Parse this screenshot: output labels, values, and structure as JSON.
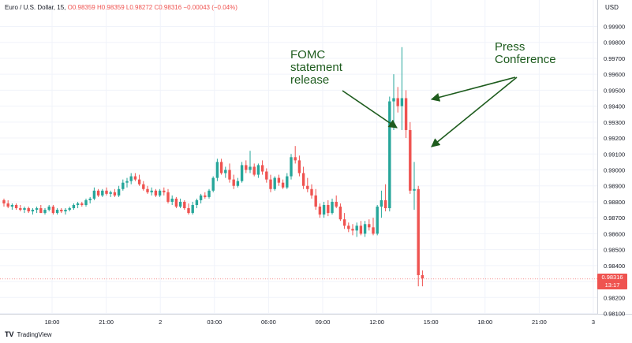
{
  "header": {
    "symbol": "Euro / U.S. Dollar, 15,",
    "ohlc": "O0.98359 H0.98359 L0.98272 C0.98316 −0.00043 (−0.04%)"
  },
  "currency": "USD",
  "brand": {
    "logo": "TV",
    "name": "TradingView"
  },
  "last_price": {
    "price": "0.98316",
    "countdown": "13:17",
    "color": "#ef5350"
  },
  "annotations": {
    "fomc": [
      "FOMC",
      "statement",
      "release"
    ],
    "press": [
      "Press",
      "Conference"
    ],
    "color": "#1e5c1e"
  },
  "colors": {
    "up": "#26a69a",
    "down": "#ef5350",
    "grid": "#f0f3fa"
  },
  "chart_data": {
    "type": "candlestick",
    "interval": "15",
    "x_ticks": [
      "18:00",
      "21:00",
      "2",
      "03:00",
      "06:00",
      "09:00",
      "12:00",
      "15:00",
      "18:00",
      "21:00",
      "3"
    ],
    "y_ticks": [
      "0.99900",
      "0.99800",
      "0.99700",
      "0.99600",
      "0.99500",
      "0.99400",
      "0.99300",
      "0.99200",
      "0.99100",
      "0.99000",
      "0.98900",
      "0.98800",
      "0.98700",
      "0.98600",
      "0.98500",
      "0.98400",
      "0.98300",
      "0.98200",
      "0.98100"
    ],
    "ylim": [
      0.981,
      0.999
    ],
    "grid": true,
    "candles": [
      [
        0.9881,
        0.9882,
        0.9877,
        0.9879
      ],
      [
        0.9879,
        0.9881,
        0.9876,
        0.9877
      ],
      [
        0.9877,
        0.9879,
        0.9875,
        0.9878
      ],
      [
        0.9878,
        0.9879,
        0.9875,
        0.9876
      ],
      [
        0.9876,
        0.9878,
        0.9874,
        0.9875
      ],
      [
        0.9875,
        0.9877,
        0.9873,
        0.9876
      ],
      [
        0.9876,
        0.9877,
        0.9873,
        0.9874
      ],
      [
        0.9874,
        0.9876,
        0.9872,
        0.9875
      ],
      [
        0.9875,
        0.9877,
        0.9873,
        0.9876
      ],
      [
        0.9876,
        0.9878,
        0.9873,
        0.9873
      ],
      [
        0.9873,
        0.9876,
        0.9872,
        0.9875
      ],
      [
        0.9875,
        0.9878,
        0.9874,
        0.9877
      ],
      [
        0.9877,
        0.9878,
        0.9872,
        0.9873
      ],
      [
        0.9873,
        0.9876,
        0.9872,
        0.9875
      ],
      [
        0.9875,
        0.9876,
        0.9873,
        0.9874
      ],
      [
        0.9874,
        0.9876,
        0.9872,
        0.9875
      ],
      [
        0.9875,
        0.9877,
        0.9874,
        0.9876
      ],
      [
        0.9876,
        0.9879,
        0.9875,
        0.9878
      ],
      [
        0.9878,
        0.988,
        0.9876,
        0.9879
      ],
      [
        0.9879,
        0.988,
        0.9877,
        0.9878
      ],
      [
        0.9878,
        0.9882,
        0.9877,
        0.9881
      ],
      [
        0.9881,
        0.9883,
        0.9879,
        0.9882
      ],
      [
        0.9882,
        0.9889,
        0.9881,
        0.9887
      ],
      [
        0.9887,
        0.9888,
        0.9883,
        0.9884
      ],
      [
        0.9884,
        0.9888,
        0.9883,
        0.9887
      ],
      [
        0.9887,
        0.9889,
        0.9884,
        0.9885
      ],
      [
        0.9885,
        0.9887,
        0.9883,
        0.9886
      ],
      [
        0.9886,
        0.9888,
        0.9883,
        0.9884
      ],
      [
        0.9884,
        0.989,
        0.9883,
        0.9888
      ],
      [
        0.9888,
        0.9894,
        0.9887,
        0.9892
      ],
      [
        0.9892,
        0.9895,
        0.9889,
        0.9893
      ],
      [
        0.9893,
        0.9898,
        0.9891,
        0.9896
      ],
      [
        0.9896,
        0.9898,
        0.9893,
        0.9894
      ],
      [
        0.9894,
        0.9897,
        0.989,
        0.9891
      ],
      [
        0.9891,
        0.9893,
        0.9887,
        0.9888
      ],
      [
        0.9888,
        0.989,
        0.9885,
        0.9886
      ],
      [
        0.9886,
        0.9889,
        0.9884,
        0.9887
      ],
      [
        0.9887,
        0.9888,
        0.9883,
        0.9884
      ],
      [
        0.9884,
        0.9888,
        0.9883,
        0.9887
      ],
      [
        0.9887,
        0.9889,
        0.9884,
        0.9886
      ],
      [
        0.9886,
        0.9888,
        0.9879,
        0.988
      ],
      [
        0.988,
        0.9884,
        0.9878,
        0.9882
      ],
      [
        0.9882,
        0.9883,
        0.9876,
        0.9877
      ],
      [
        0.9877,
        0.9882,
        0.9876,
        0.988
      ],
      [
        0.988,
        0.9881,
        0.9875,
        0.9876
      ],
      [
        0.9876,
        0.9879,
        0.9872,
        0.9873
      ],
      [
        0.9873,
        0.988,
        0.9872,
        0.9878
      ],
      [
        0.9878,
        0.9882,
        0.9876,
        0.9881
      ],
      [
        0.9881,
        0.9885,
        0.9879,
        0.9884
      ],
      [
        0.9884,
        0.9886,
        0.9882,
        0.9883
      ],
      [
        0.9883,
        0.9888,
        0.9882,
        0.9887
      ],
      [
        0.9887,
        0.9896,
        0.9886,
        0.9895
      ],
      [
        0.9895,
        0.9907,
        0.9893,
        0.9905
      ],
      [
        0.9905,
        0.9907,
        0.9897,
        0.9898
      ],
      [
        0.9898,
        0.9902,
        0.9895,
        0.99
      ],
      [
        0.99,
        0.9904,
        0.9892,
        0.9894
      ],
      [
        0.9894,
        0.9897,
        0.9888,
        0.989
      ],
      [
        0.989,
        0.9895,
        0.9889,
        0.9893
      ],
      [
        0.9893,
        0.9905,
        0.9892,
        0.9903
      ],
      [
        0.9903,
        0.9906,
        0.9898,
        0.99
      ],
      [
        0.99,
        0.9912,
        0.9898,
        0.9902
      ],
      [
        0.9902,
        0.9904,
        0.9896,
        0.9897
      ],
      [
        0.9897,
        0.9904,
        0.9895,
        0.9903
      ],
      [
        0.9903,
        0.9906,
        0.9897,
        0.9899
      ],
      [
        0.9899,
        0.9901,
        0.9892,
        0.9894
      ],
      [
        0.9894,
        0.9897,
        0.9886,
        0.9888
      ],
      [
        0.9888,
        0.9896,
        0.9887,
        0.9895
      ],
      [
        0.9895,
        0.9897,
        0.989,
        0.9892
      ],
      [
        0.9892,
        0.9894,
        0.9888,
        0.9889
      ],
      [
        0.9889,
        0.9898,
        0.9888,
        0.9896
      ],
      [
        0.9896,
        0.991,
        0.9894,
        0.9908
      ],
      [
        0.9908,
        0.9915,
        0.9904,
        0.9906
      ],
      [
        0.9906,
        0.9909,
        0.9896,
        0.9898
      ],
      [
        0.9898,
        0.9902,
        0.9888,
        0.989
      ],
      [
        0.989,
        0.9895,
        0.9886,
        0.9888
      ],
      [
        0.9888,
        0.9891,
        0.9882,
        0.9884
      ],
      [
        0.9884,
        0.9888,
        0.9875,
        0.9877
      ],
      [
        0.9877,
        0.9879,
        0.987,
        0.9872
      ],
      [
        0.9872,
        0.988,
        0.987,
        0.9878
      ],
      [
        0.9878,
        0.9881,
        0.9871,
        0.9873
      ],
      [
        0.9873,
        0.9882,
        0.9872,
        0.988
      ],
      [
        0.988,
        0.9884,
        0.9876,
        0.9877
      ],
      [
        0.9877,
        0.9879,
        0.9868,
        0.9869
      ],
      [
        0.9869,
        0.9873,
        0.9863,
        0.9865
      ],
      [
        0.9865,
        0.9867,
        0.9861,
        0.9863
      ],
      [
        0.9863,
        0.9866,
        0.9859,
        0.9862
      ],
      [
        0.9862,
        0.9867,
        0.9858,
        0.9865
      ],
      [
        0.9865,
        0.9868,
        0.9859,
        0.986
      ],
      [
        0.986,
        0.9868,
        0.9858,
        0.9866
      ],
      [
        0.9866,
        0.9869,
        0.9862,
        0.9864
      ],
      [
        0.9864,
        0.987,
        0.9859,
        0.986
      ],
      [
        0.986,
        0.9878,
        0.9859,
        0.9877
      ],
      [
        0.9877,
        0.9887,
        0.987,
        0.9881
      ],
      [
        0.9881,
        0.9891,
        0.9874,
        0.9876
      ],
      [
        0.9876,
        0.9946,
        0.9874,
        0.9943
      ],
      [
        0.9943,
        0.996,
        0.9925,
        0.9945
      ],
      [
        0.9945,
        0.9952,
        0.9936,
        0.994
      ],
      [
        0.994,
        0.9977,
        0.9925,
        0.9945
      ],
      [
        0.9945,
        0.995,
        0.992,
        0.9925
      ],
      [
        0.9925,
        0.993,
        0.9885,
        0.9887
      ],
      [
        0.9887,
        0.9905,
        0.9875,
        0.9888
      ],
      [
        0.9888,
        0.989,
        0.9827,
        0.9834
      ],
      [
        0.9834,
        0.9837,
        0.9827,
        0.9832
      ]
    ]
  }
}
